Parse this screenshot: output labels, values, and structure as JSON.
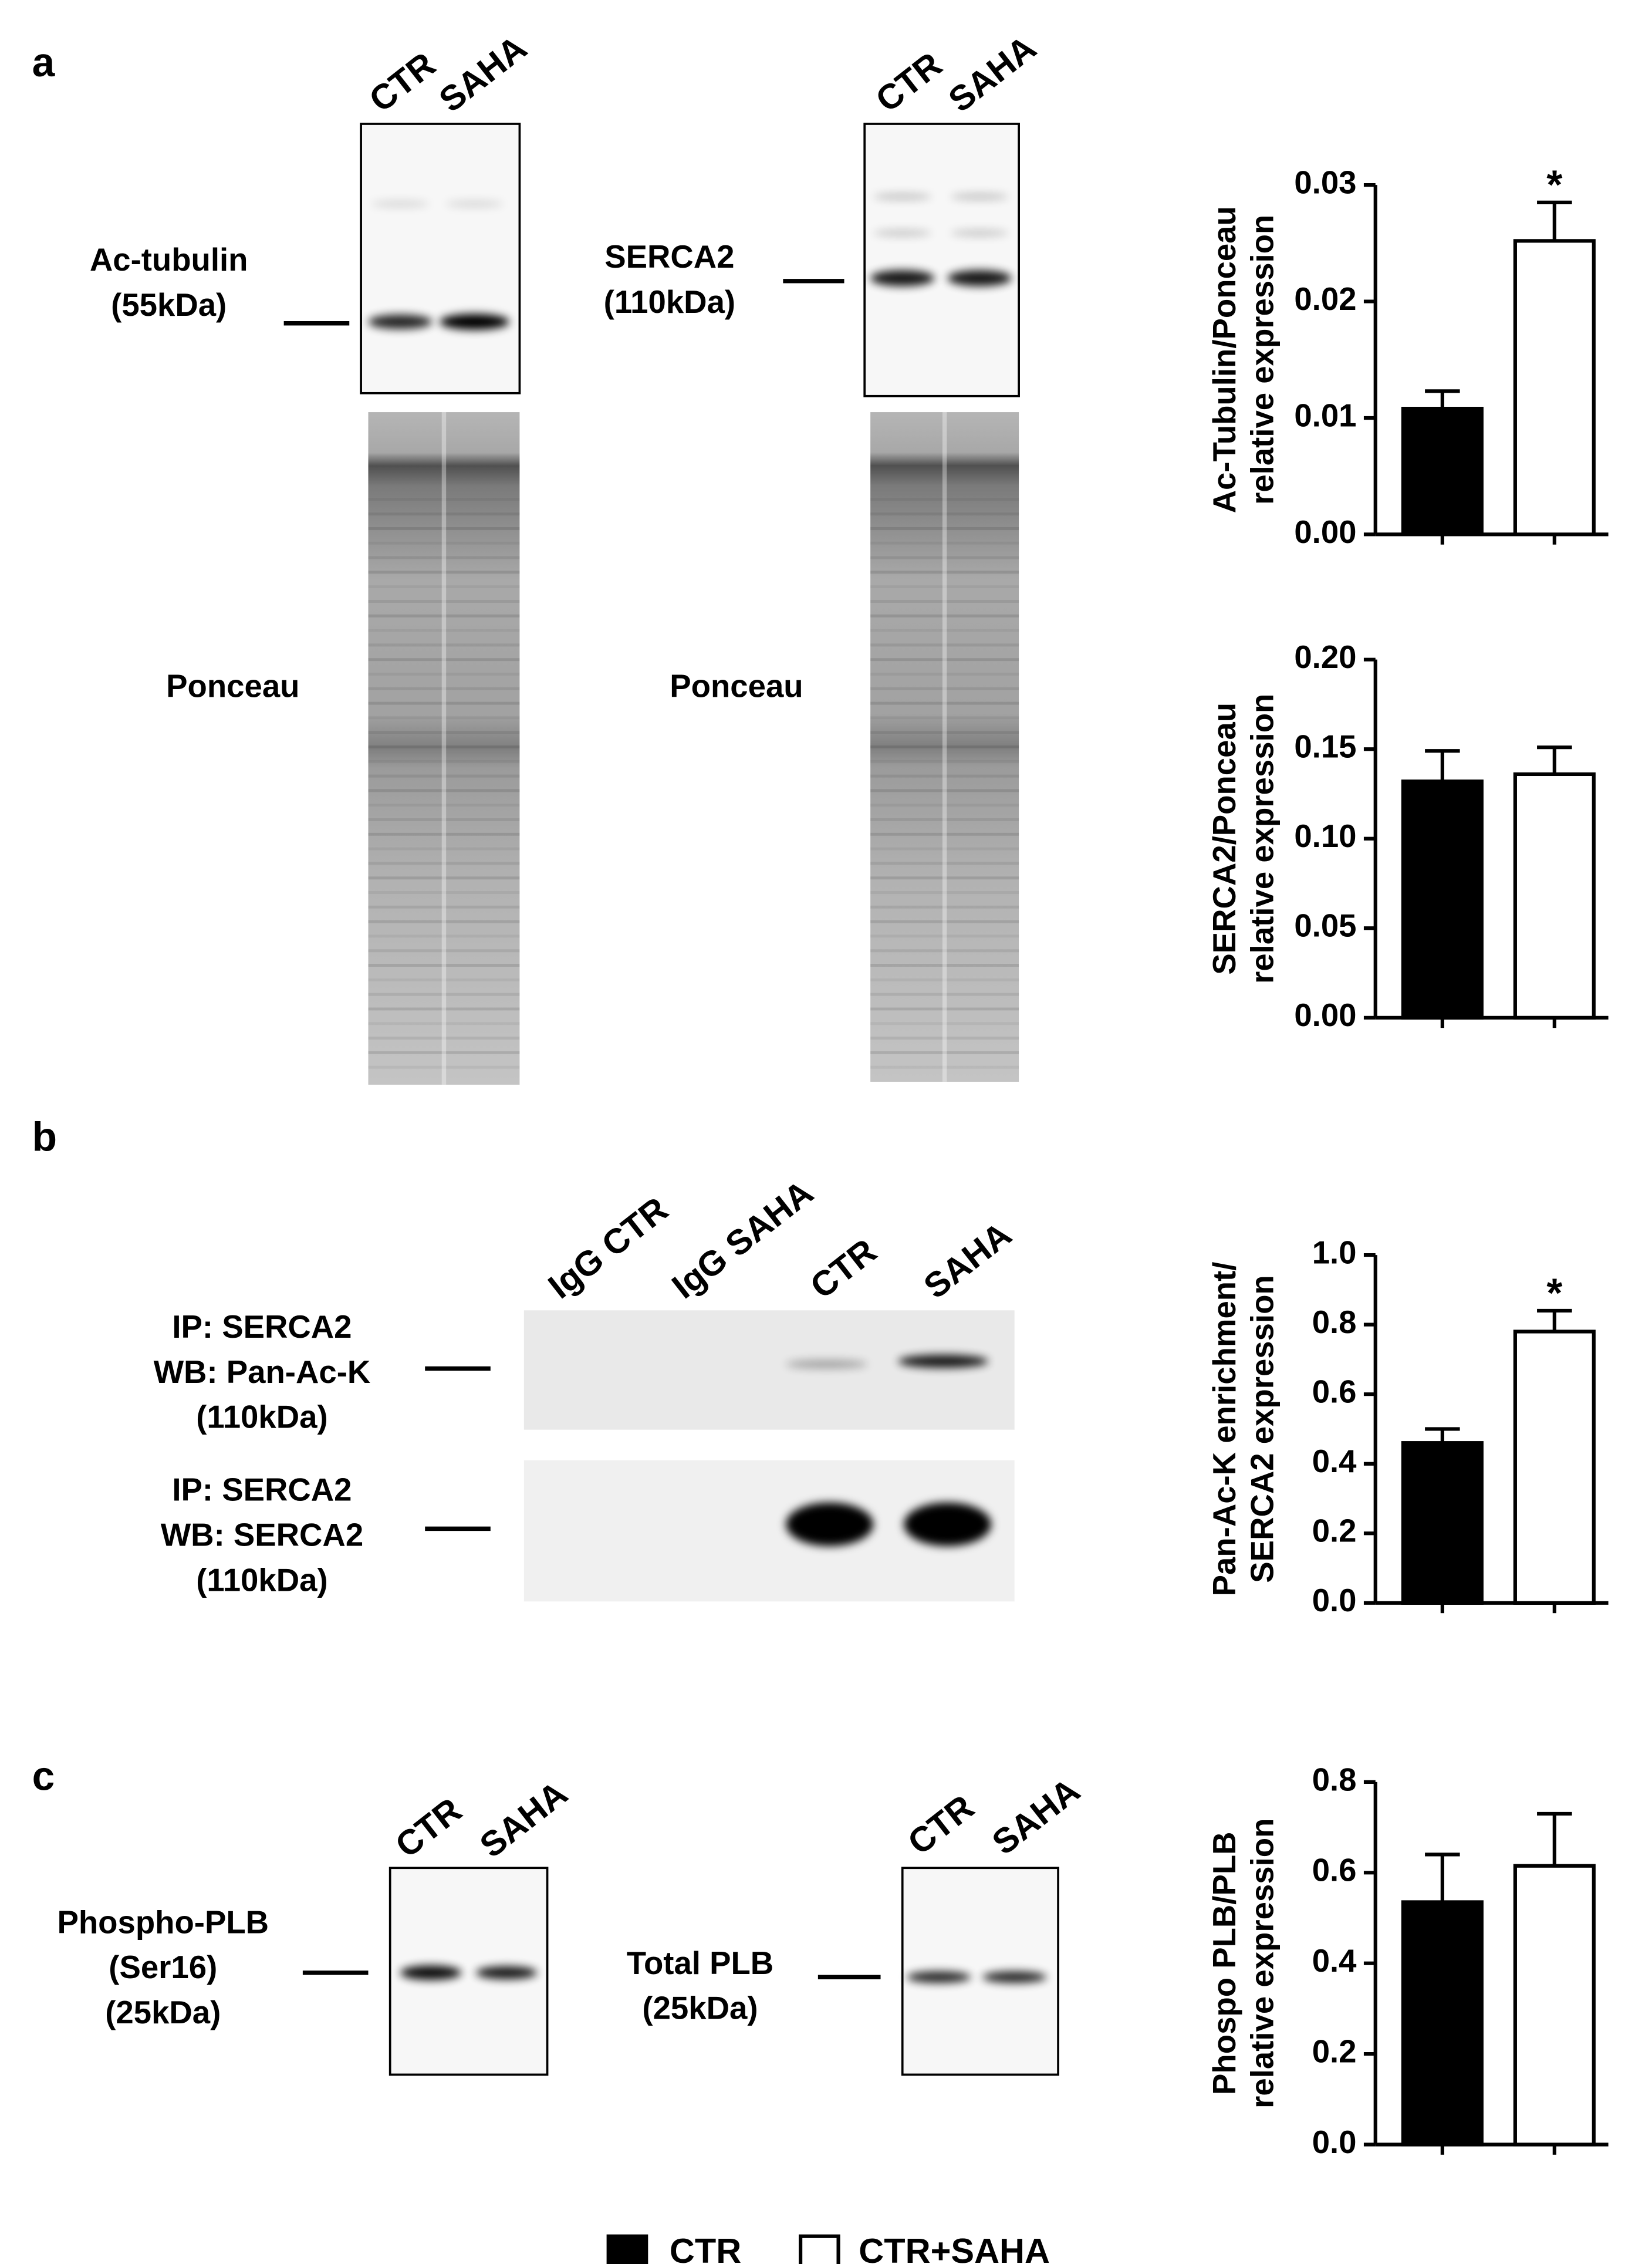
{
  "panel_labels": [
    "a",
    "b",
    "c"
  ],
  "blots": [
    {
      "lanes": [
        "CTR",
        "SAHA"
      ],
      "rows": [
        [
          "Ac-tubulin",
          "(55kDa)"
        ]
      ],
      "loading": "Ponceau"
    },
    {
      "lanes": [
        "CTR",
        "SAHA"
      ],
      "rows": [
        [
          "SERCA2",
          "(110kDa)"
        ]
      ],
      "loading": "Ponceau"
    },
    {
      "lanes": [
        "IgG CTR",
        "IgG SAHA",
        "CTR",
        "SAHA"
      ],
      "rows": [
        [
          "IP: SERCA2",
          "WB: Pan-Ac-K",
          "(110kDa)"
        ],
        [
          "IP: SERCA2",
          "WB: SERCA2",
          "(110kDa)"
        ]
      ]
    },
    {
      "lanes": [
        "CTR",
        "SAHA"
      ],
      "rows": [
        [
          "Phospho-PLB",
          "(Ser16)",
          "(25kDa)"
        ]
      ]
    },
    {
      "lanes": [
        "CTR",
        "SAHA"
      ],
      "rows": [
        [
          "Total PLB",
          "(25kDa)"
        ]
      ]
    }
  ],
  "legend": [
    {
      "name": "CTR",
      "color": "#000000"
    },
    {
      "name": "CTR+SAHA",
      "color": "#ffffff"
    }
  ],
  "chart_data": [
    {
      "type": "bar",
      "ylabel": [
        "Ac-Tubulin/Ponceau",
        "relative expression"
      ],
      "categories": [
        null,
        null
      ],
      "values": [
        0.0108,
        0.0252
      ],
      "errors": [
        0.0015,
        0.0033
      ],
      "colors": [
        "#000000",
        "#ffffff"
      ],
      "annotations": [
        null,
        "*"
      ],
      "ylim": [
        0,
        0.03
      ],
      "yticks": [
        {
          "value": 0,
          "label": "0.00"
        },
        0.01,
        0.02,
        0.03
      ]
    },
    {
      "type": "bar",
      "ylabel": [
        "SERCA2/Ponceau",
        "relative expression"
      ],
      "categories": [
        null,
        null
      ],
      "values": [
        0.132,
        0.136
      ],
      "errors": [
        0.017,
        0.015
      ],
      "colors": [
        "#000000",
        "#ffffff"
      ],
      "ylim": [
        0,
        0.2
      ],
      "yticks": [
        {
          "value": 0,
          "label": "0.00"
        },
        0.05,
        {
          "value": 0.1,
          "label": "0.10"
        },
        0.15,
        {
          "value": 0.2,
          "label": "0.20"
        }
      ]
    },
    {
      "type": "bar",
      "ylabel": [
        "Pan-Ac-K enrichment/",
        "SERCA2 expression"
      ],
      "categories": [
        null,
        null
      ],
      "values": [
        0.46,
        0.78
      ],
      "errors": [
        0.04,
        0.06
      ],
      "colors": [
        "#000000",
        "#ffffff"
      ],
      "annotations": [
        null,
        "*"
      ],
      "ylim": [
        0,
        1
      ],
      "yticks": [
        {
          "value": 0,
          "label": "0.0"
        },
        0.2,
        0.4,
        0.6,
        0.8,
        {
          "value": 1,
          "label": "1.0"
        }
      ]
    },
    {
      "type": "bar",
      "ylabel": [
        "Phospo PLB/PLB",
        "relative expression"
      ],
      "categories": [
        null,
        null
      ],
      "values": [
        0.535,
        0.615
      ],
      "errors": [
        0.105,
        0.115
      ],
      "colors": [
        "#000000",
        "#ffffff"
      ],
      "ylim": [
        0,
        0.8
      ],
      "yticks": [
        {
          "value": 0,
          "label": "0.0"
        },
        0.2,
        0.4,
        0.6,
        0.8
      ]
    }
  ]
}
